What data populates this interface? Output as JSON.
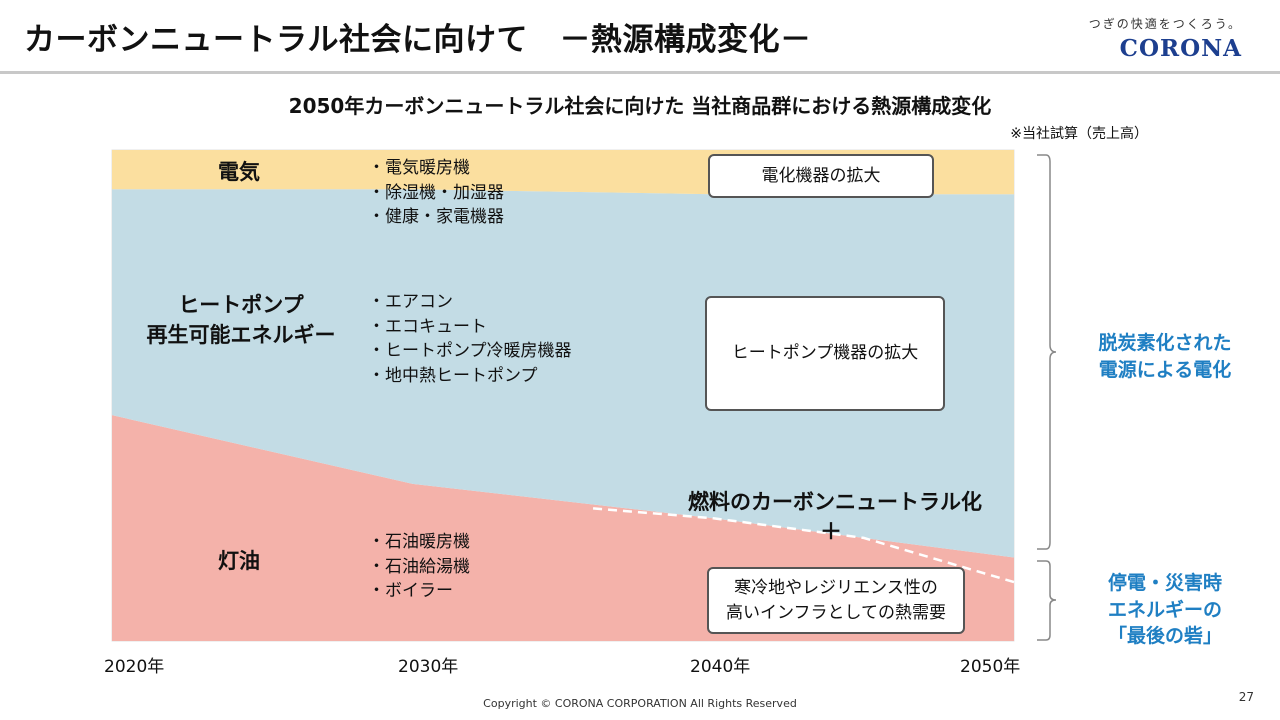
{
  "header": {
    "title": "カーボンニュートラル社会に向けて　－熱源構成変化－",
    "logo_tagline": "つぎの快適をつくろう。",
    "logo_text": "CORONA"
  },
  "chart_data": {
    "type": "area",
    "title": "2050年カーボンニュートラル社会に向けた 当社商品群における熱源構成変化",
    "note": "※当社試算（売上高）",
    "x": [
      2020,
      2030,
      2040,
      2050
    ],
    "x_tick_labels": [
      "2020年",
      "2030年",
      "2040年",
      "2050年"
    ],
    "xlim": [
      2020,
      2050
    ],
    "ylim": [
      0,
      100
    ],
    "series": [
      {
        "name": "灯油",
        "stack_top": [
          46,
          32,
          25,
          17
        ],
        "color": "#f4b2aa",
        "items": [
          "石油暖房機",
          "石油給湯機",
          "ボイラー"
        ]
      },
      {
        "name": "ヒートポンプ\n再生可能エネルギー",
        "stack_top": [
          92,
          92,
          91,
          91
        ],
        "color": "#c3dce5",
        "items": [
          "エアコン",
          "エコキュート",
          "ヒートポンプ冷暖房機器",
          "地中熱ヒートポンプ"
        ]
      },
      {
        "name": "電気",
        "stack_top": [
          100,
          100,
          100,
          100
        ],
        "color": "#fbdf9f",
        "items": [
          "電気暖房機",
          "除湿機・加湿器",
          "健康・家電機器"
        ]
      }
    ],
    "dashed_trend": {
      "x": [
        2036,
        2040,
        2045,
        2050
      ],
      "y": [
        27,
        25,
        21,
        12
      ]
    },
    "annotations": {
      "electric_box": "電化機器の拡大",
      "heatpump_box": "ヒートポンプ機器の拡大",
      "fuel_text": "燃料のカーボンニュートラル化",
      "plus": "＋",
      "resilience_box": "寒冷地やレジリエンス性の\n高いインフラとしての熱需要"
    },
    "side_labels": {
      "upper": "脱炭素化された\n電源による電化",
      "lower": "停電・災害時\nエネルギーの\n「最後の砦」"
    }
  },
  "footer": {
    "copyright": "Copyright © CORONA CORPORATION All Rights Reserved",
    "page_number": "27"
  },
  "colors": {
    "side_label": "#1f7fc3",
    "kerosene": "#f4b2aa",
    "heatpump": "#c3dce5",
    "electric": "#fbdf9f"
  }
}
